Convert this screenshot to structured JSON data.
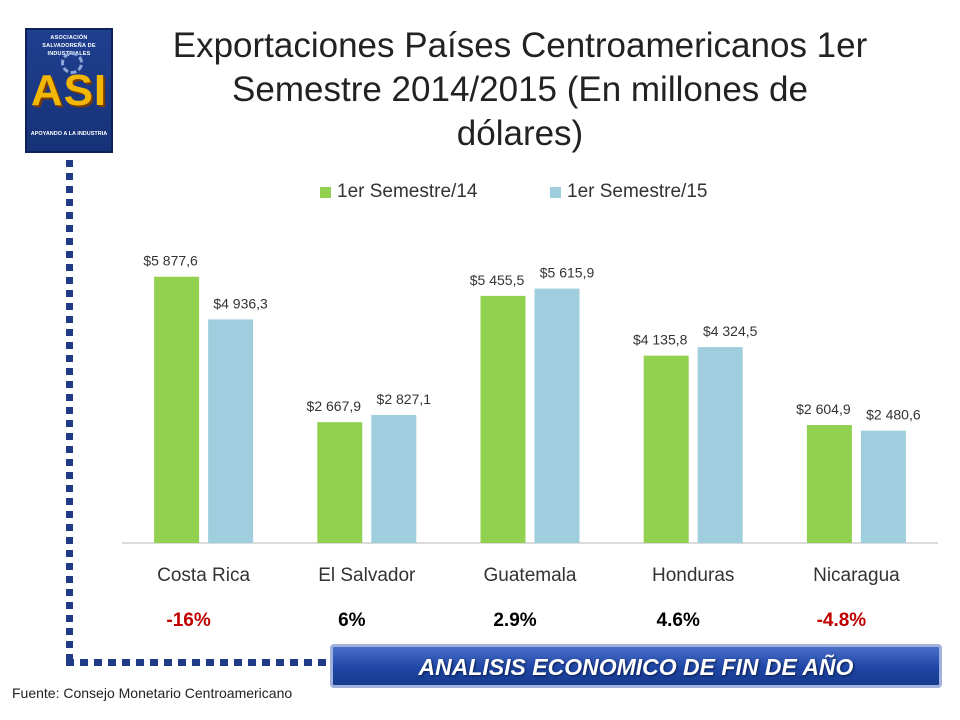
{
  "logo": {
    "top_text": "ASOCIACIÓN SALVADOREÑA DE INDUSTRIALES",
    "main_text": "ASI",
    "bottom_text": "APOYANDO A LA INDUSTRIA"
  },
  "title_line1": "Exportaciones Países Centroamericanos 1er",
  "title_line2": "Semestre 2014/2015 (En millones de",
  "title_line3": "dólares)",
  "colors": {
    "series1": "#92d050",
    "series2": "#9fcfdf",
    "positive": "#000000",
    "negative": "#c00000",
    "border": "#1f3a86"
  },
  "chart_data": {
    "type": "bar",
    "categories": [
      "Costa Rica",
      "El Salvador",
      "Guatemala",
      "Honduras",
      "Nicaragua"
    ],
    "series": [
      {
        "name": "1er Semestre/14",
        "values": [
          5877.6,
          2667.9,
          5455.5,
          4135.8,
          2604.9
        ],
        "labels": [
          "$5 877,6",
          "$2 667,9",
          "$5 455,5",
          "$4 135,8",
          "$2 604,9"
        ]
      },
      {
        "name": "1er Semestre/15",
        "values": [
          4936.3,
          2827.1,
          5615.9,
          4324.5,
          2480.6
        ],
        "labels": [
          "$4 936,3",
          "$2 827,1",
          "$5 615,9",
          "$4 324,5",
          "$2 480,6"
        ]
      }
    ],
    "ylim": [
      0,
      6500
    ],
    "legend": "top",
    "grid": false
  },
  "changes": [
    {
      "label": "-16%",
      "sign": "negative"
    },
    {
      "label": "6%",
      "sign": "positive"
    },
    {
      "label": "2.9%",
      "sign": "positive"
    },
    {
      "label": "4.6%",
      "sign": "positive"
    },
    {
      "label": "-4.8%",
      "sign": "negative"
    }
  ],
  "banner": "ANALISIS ECONOMICO DE FIN DE AÑO",
  "source": "Fuente: Consejo Monetario Centroamericano"
}
